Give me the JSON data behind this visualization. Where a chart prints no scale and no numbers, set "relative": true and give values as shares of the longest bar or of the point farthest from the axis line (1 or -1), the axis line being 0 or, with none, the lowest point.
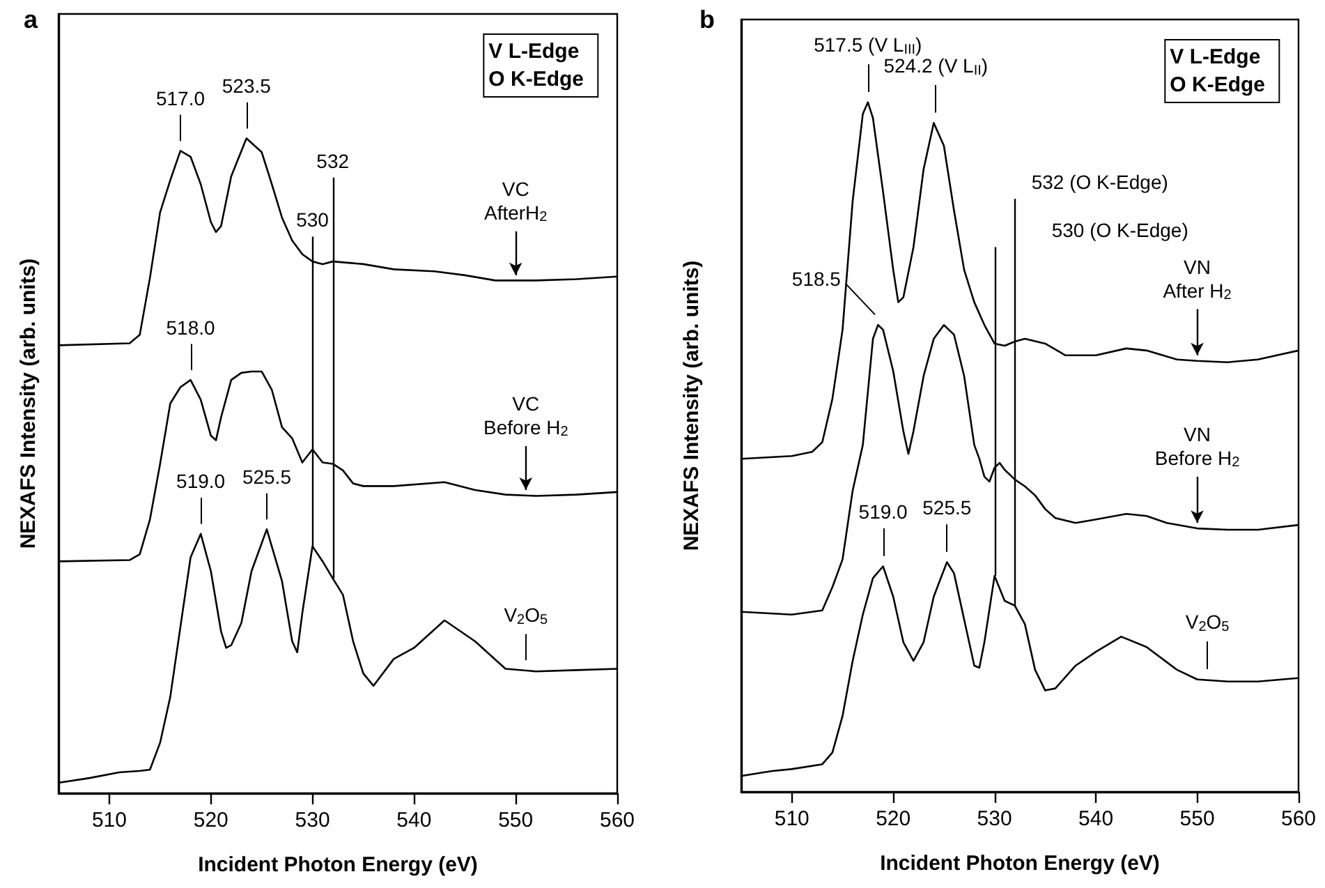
{
  "chart_data": [
    {
      "type": "line",
      "title": "a",
      "xlabel": "Incident Photon Energy (eV)",
      "ylabel": "NEXAFS Intensity (arb. units)",
      "relative": true,
      "xlim": [
        505,
        560
      ],
      "xticks": [
        510,
        520,
        530,
        540,
        550,
        560
      ],
      "grid": false,
      "marker": "none",
      "line_style": "solid",
      "series": [
        {
          "color": "#000000",
          "x": [
            505,
            512,
            513,
            514,
            515,
            516,
            517,
            518,
            519,
            520,
            520.5,
            521,
            522,
            523.5,
            525,
            526,
            527,
            528,
            529,
            530,
            531,
            532,
            535,
            538,
            542,
            545,
            548,
            552,
            556,
            560
          ],
          "values": [
            0.684,
            0.687,
            0.7,
            0.787,
            0.887,
            0.936,
            0.981,
            0.972,
            0.93,
            0.872,
            0.857,
            0.866,
            0.942,
            1.0,
            0.979,
            0.93,
            0.879,
            0.844,
            0.823,
            0.812,
            0.808,
            0.812,
            0.808,
            0.8,
            0.797,
            0.791,
            0.783,
            0.783,
            0.785,
            0.789
          ]
        },
        {
          "color": "#000000",
          "x": [
            505,
            512,
            513,
            514,
            515,
            516,
            517,
            518,
            519,
            520,
            520.5,
            521,
            522,
            523,
            524,
            525,
            526,
            527,
            528,
            529,
            530,
            531,
            532,
            533,
            534,
            535,
            538,
            543,
            546,
            549,
            552,
            556,
            560
          ],
          "values": [
            0.354,
            0.356,
            0.365,
            0.418,
            0.503,
            0.595,
            0.62,
            0.631,
            0.601,
            0.546,
            0.539,
            0.574,
            0.631,
            0.642,
            0.644,
            0.644,
            0.616,
            0.559,
            0.542,
            0.505,
            0.525,
            0.505,
            0.503,
            0.493,
            0.473,
            0.469,
            0.469,
            0.475,
            0.463,
            0.456,
            0.454,
            0.456,
            0.46
          ]
        },
        {
          "color": "#000000",
          "x": [
            505,
            508,
            511,
            513,
            514,
            515,
            516,
            517,
            518,
            519,
            520,
            521,
            521.5,
            522,
            523,
            524,
            525.5,
            527,
            528,
            528.5,
            529,
            530,
            531,
            532,
            533,
            534,
            535,
            536,
            538,
            540,
            543,
            546,
            549,
            552,
            556,
            560
          ],
          "values": [
            0.016,
            0.023,
            0.032,
            0.034,
            0.036,
            0.077,
            0.147,
            0.254,
            0.36,
            0.396,
            0.339,
            0.247,
            0.222,
            0.226,
            0.26,
            0.339,
            0.403,
            0.324,
            0.232,
            0.215,
            0.275,
            0.377,
            0.354,
            0.328,
            0.303,
            0.232,
            0.183,
            0.164,
            0.205,
            0.222,
            0.264,
            0.232,
            0.19,
            0.186,
            0.188,
            0.19
          ]
        }
      ],
      "ref_lines": [
        {
          "axis": "x",
          "value": 530,
          "label": "530"
        },
        {
          "axis": "x",
          "value": 532,
          "label": "532"
        }
      ],
      "annotations": [
        "V L-Edge\nO K-Edge",
        {
          "text": "517.0",
          "x": 517,
          "y": 0.981
        },
        {
          "text": "523.5",
          "x": 523.5,
          "y": 1.0
        },
        {
          "text": "518.0",
          "x": 518,
          "y": 0.631
        },
        {
          "text": "519.0",
          "x": 519,
          "y": 0.396
        },
        {
          "text": "525.5",
          "x": 525.5,
          "y": 0.403
        },
        {
          "text": "VC\nAfterH$_{2}$",
          "x": 550,
          "y": 0.783
        },
        {
          "text": "VC\nBefore H$_{2}$",
          "x": 551,
          "y": 0.455
        },
        {
          "text": "V$_{2}$O$_{5}$",
          "x": 551,
          "y": 0.188
        }
      ]
    },
    {
      "type": "line",
      "title": "b",
      "xlabel": "Incident Photon Energy (eV)",
      "ylabel": "NEXAFS Intensity (arb. units)",
      "relative": true,
      "xlim": [
        505,
        560
      ],
      "xticks": [
        510,
        520,
        530,
        540,
        550,
        560
      ],
      "grid": false,
      "marker": "none",
      "line_style": "solid",
      "series": [
        {
          "color": "#000000",
          "x": [
            505,
            510,
            512,
            513,
            514,
            515,
            516,
            517,
            517.5,
            518,
            519,
            520,
            520.5,
            521,
            522,
            523,
            524,
            525,
            526,
            527,
            528,
            529,
            530,
            531,
            532,
            533,
            535,
            537,
            540,
            543,
            545,
            548,
            550,
            553,
            556,
            560
          ],
          "values": [
            0.483,
            0.487,
            0.493,
            0.507,
            0.57,
            0.67,
            0.857,
            0.983,
            1.0,
            0.977,
            0.87,
            0.757,
            0.71,
            0.717,
            0.79,
            0.903,
            0.97,
            0.937,
            0.843,
            0.757,
            0.71,
            0.677,
            0.65,
            0.647,
            0.653,
            0.657,
            0.65,
            0.633,
            0.633,
            0.643,
            0.64,
            0.627,
            0.625,
            0.623,
            0.627,
            0.64
          ]
        },
        {
          "color": "#000000",
          "x": [
            505,
            510,
            513,
            514,
            515,
            516,
            517,
            518,
            518.5,
            519,
            520,
            521,
            521.5,
            522,
            523,
            524,
            525,
            526,
            527,
            528,
            528.5,
            529,
            529.5,
            530,
            530.5,
            531,
            532,
            533,
            534,
            535,
            536,
            538,
            540,
            543,
            545,
            547,
            550,
            553,
            556,
            560
          ],
          "values": [
            0.261,
            0.257,
            0.263,
            0.297,
            0.337,
            0.437,
            0.503,
            0.657,
            0.677,
            0.67,
            0.61,
            0.523,
            0.49,
            0.523,
            0.603,
            0.657,
            0.677,
            0.663,
            0.603,
            0.503,
            0.483,
            0.457,
            0.45,
            0.47,
            0.477,
            0.467,
            0.453,
            0.443,
            0.43,
            0.41,
            0.397,
            0.39,
            0.395,
            0.403,
            0.4,
            0.39,
            0.382,
            0.38,
            0.38,
            0.387
          ]
        },
        {
          "color": "#000000",
          "x": [
            505,
            508,
            510,
            513,
            514,
            515,
            516,
            517,
            518,
            519,
            520,
            521,
            522,
            523,
            524,
            525.3,
            526,
            527,
            528,
            528.5,
            529,
            530,
            531,
            532,
            533,
            534,
            535,
            536,
            538,
            540,
            542.5,
            545,
            548,
            550,
            553,
            556,
            560
          ],
          "values": [
            0.023,
            0.03,
            0.033,
            0.04,
            0.057,
            0.11,
            0.19,
            0.257,
            0.31,
            0.327,
            0.283,
            0.217,
            0.19,
            0.217,
            0.283,
            0.333,
            0.317,
            0.25,
            0.183,
            0.18,
            0.217,
            0.313,
            0.277,
            0.27,
            0.243,
            0.177,
            0.147,
            0.15,
            0.183,
            0.203,
            0.225,
            0.21,
            0.177,
            0.163,
            0.16,
            0.16,
            0.165
          ]
        }
      ],
      "ref_lines": [
        {
          "axis": "x",
          "value": 530,
          "label": "530 (O K-Edge)"
        },
        {
          "axis": "x",
          "value": 532,
          "label": "532 (O K-Edge)"
        }
      ],
      "annotations": [
        "V L-Edge\nO K-Edge",
        {
          "text": "517.5 (V L$_{III}$)",
          "x": 517.5,
          "y": 1.0
        },
        {
          "text": "524.2 (V L$_{II}$)",
          "x": 524.2,
          "y": 0.97
        },
        {
          "text": "518.5",
          "x": 518.5,
          "y": 0.677
        },
        {
          "text": "519.0",
          "x": 519,
          "y": 0.327
        },
        {
          "text": "525.5",
          "x": 525.3,
          "y": 0.333
        },
        {
          "text": "VN\nAfter H$_{2}$",
          "x": 550,
          "y": 0.625
        },
        {
          "text": "VN\nBefore H$_{2}$",
          "x": 550,
          "y": 0.382
        },
        {
          "text": "V$_{2}$O$_{5}$",
          "x": 551,
          "y": 0.163
        }
      ]
    }
  ]
}
